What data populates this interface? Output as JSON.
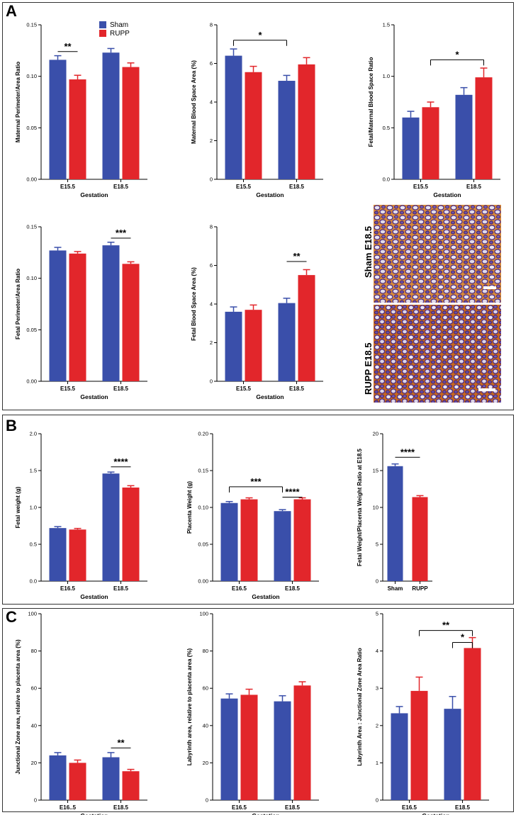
{
  "panels": {
    "A": "A",
    "B": "B",
    "C": "C"
  },
  "legend": {
    "sham": "Sham",
    "rupp": "RUPP",
    "sham_color": "#3a4faa",
    "rupp_color": "#e2262b"
  },
  "colors": {
    "sham": "#3a4faa",
    "rupp": "#e2262b"
  },
  "images": {
    "sham_label": "Sham E18.5",
    "rupp_label": "RUPP E18.5"
  },
  "chart_data": [
    {
      "id": "a1",
      "type": "bar",
      "ylabel": "Maternal Perimeter/Area Ratio",
      "xlabel": "Gestation",
      "categories": [
        "E15.5",
        "E18.5"
      ],
      "ylim": [
        0,
        0.15
      ],
      "yticks": [
        "0.00",
        "0.05",
        "0.10",
        "0.15"
      ],
      "series": [
        {
          "name": "Sham",
          "values": [
            0.116,
            0.123
          ],
          "errors": [
            0.004,
            0.004
          ]
        },
        {
          "name": "RUPP",
          "values": [
            0.097,
            0.109
          ],
          "errors": [
            0.004,
            0.004
          ]
        }
      ],
      "annotations": [
        {
          "text": "**",
          "from": [
            0,
            0
          ],
          "to": [
            0,
            1
          ],
          "y": 0.124,
          "bracket": false
        }
      ]
    },
    {
      "id": "a2",
      "type": "bar",
      "ylabel": "Maternal Blood Space Area (%)",
      "xlabel": "Gestation",
      "categories": [
        "E15.5",
        "E18.5"
      ],
      "ylim": [
        0,
        8
      ],
      "yticks": [
        "0",
        "2",
        "4",
        "6",
        "8"
      ],
      "series": [
        {
          "name": "Sham",
          "values": [
            6.4,
            5.1
          ],
          "errors": [
            0.35,
            0.28
          ]
        },
        {
          "name": "RUPP",
          "values": [
            5.55,
            5.95
          ],
          "errors": [
            0.3,
            0.35
          ]
        }
      ],
      "annotations": [
        {
          "text": "*",
          "from": [
            0,
            0
          ],
          "to": [
            1,
            0
          ],
          "y": 7.2,
          "bracket": true
        }
      ]
    },
    {
      "id": "a3",
      "type": "bar",
      "ylabel": "Fetal/Maternal Blood Space Ratio",
      "xlabel": "Gestation",
      "categories": [
        "E15.5",
        "E18.5"
      ],
      "ylim": [
        0,
        1.5
      ],
      "yticks": [
        "0.0",
        "0.5",
        "1.0",
        "1.5"
      ],
      "series": [
        {
          "name": "Sham",
          "values": [
            0.6,
            0.82
          ],
          "errors": [
            0.06,
            0.07
          ]
        },
        {
          "name": "RUPP",
          "values": [
            0.7,
            0.99
          ],
          "errors": [
            0.05,
            0.09
          ]
        }
      ],
      "annotations": [
        {
          "text": "*",
          "from": [
            0,
            1
          ],
          "to": [
            1,
            1
          ],
          "y": 1.16,
          "bracket": true
        }
      ]
    },
    {
      "id": "a4",
      "type": "bar",
      "ylabel": "Fetal Perimeter/Area Ratio",
      "xlabel": "Gestation",
      "categories": [
        "E15.5",
        "E18.5"
      ],
      "ylim": [
        0,
        0.15
      ],
      "yticks": [
        "0.00",
        "0.05",
        "0.10",
        "0.15"
      ],
      "series": [
        {
          "name": "Sham",
          "values": [
            0.127,
            0.132
          ],
          "errors": [
            0.003,
            0.003
          ]
        },
        {
          "name": "RUPP",
          "values": [
            0.124,
            0.114
          ],
          "errors": [
            0.002,
            0.002
          ]
        }
      ],
      "annotations": [
        {
          "text": "***",
          "from": [
            1,
            0
          ],
          "to": [
            1,
            1
          ],
          "y": 0.139,
          "bracket": false
        }
      ]
    },
    {
      "id": "a5",
      "type": "bar",
      "ylabel": "Fetal Blood Space Area (%)",
      "xlabel": "Gestation",
      "categories": [
        "E15.5",
        "E18.5"
      ],
      "ylim": [
        0,
        8
      ],
      "yticks": [
        "0",
        "2",
        "4",
        "6",
        "8"
      ],
      "series": [
        {
          "name": "Sham",
          "values": [
            3.6,
            4.05
          ],
          "errors": [
            0.25,
            0.25
          ]
        },
        {
          "name": "RUPP",
          "values": [
            3.7,
            5.5
          ],
          "errors": [
            0.25,
            0.28
          ]
        }
      ],
      "annotations": [
        {
          "text": "**",
          "from": [
            1,
            0
          ],
          "to": [
            1,
            1
          ],
          "y": 6.2,
          "bracket": false
        }
      ]
    },
    {
      "id": "b1",
      "type": "bar",
      "ylabel": "Fetal weight (g)",
      "xlabel": "Gestation",
      "categories": [
        "E16.5",
        "E18.5"
      ],
      "ylim": [
        0,
        2.0
      ],
      "yticks": [
        "0.0",
        "0.5",
        "1.0",
        "1.5",
        "2.0"
      ],
      "series": [
        {
          "name": "Sham",
          "values": [
            0.72,
            1.46
          ],
          "errors": [
            0.02,
            0.02
          ]
        },
        {
          "name": "RUPP",
          "values": [
            0.7,
            1.27
          ],
          "errors": [
            0.015,
            0.025
          ]
        }
      ],
      "annotations": [
        {
          "text": "****",
          "from": [
            1,
            0
          ],
          "to": [
            1,
            1
          ],
          "y": 1.55,
          "bracket": false
        }
      ]
    },
    {
      "id": "b2",
      "type": "bar",
      "ylabel": "Placenta Weight (g)",
      "xlabel": "Gestation",
      "categories": [
        "E16.5",
        "E18.5"
      ],
      "ylim": [
        0,
        0.2
      ],
      "yticks": [
        "0.00",
        "0.05",
        "0.10",
        "0.15",
        "0.20"
      ],
      "series": [
        {
          "name": "Sham",
          "values": [
            0.106,
            0.095
          ],
          "errors": [
            0.002,
            0.002
          ]
        },
        {
          "name": "RUPP",
          "values": [
            0.111,
            0.111
          ],
          "errors": [
            0.002,
            0.002
          ]
        }
      ],
      "annotations": [
        {
          "text": "***",
          "from": [
            0,
            0
          ],
          "to": [
            1,
            0
          ],
          "y": 0.128,
          "bracket": true
        },
        {
          "text": "****",
          "from": [
            1,
            0
          ],
          "to": [
            1,
            1
          ],
          "y": 0.114,
          "bracket": false
        }
      ]
    },
    {
      "id": "b3",
      "type": "bar",
      "ylabel": "Fetal Weight/Placenta Weight Ratio at E18.5",
      "xlabel": "",
      "categories": [
        "Sham",
        "RUPP"
      ],
      "ylim": [
        0,
        20
      ],
      "yticks": [
        "0",
        "5",
        "10",
        "15",
        "20"
      ],
      "series": [
        {
          "name": "Values",
          "values": [
            15.6,
            11.4
          ],
          "errors": [
            0.3,
            0.2
          ]
        }
      ],
      "annotations": [
        {
          "text": "****",
          "from": [
            0,
            0
          ],
          "to": [
            1,
            0
          ],
          "y": 16.8,
          "bracket": false
        }
      ]
    },
    {
      "id": "c1",
      "type": "bar",
      "ylabel": "Junctional Zone area, relative to placenta area (%)",
      "xlabel": "Gestation",
      "categories": [
        "E16..5",
        "E18.5"
      ],
      "ylim": [
        0,
        100
      ],
      "yticks": [
        "0",
        "20",
        "40",
        "60",
        "80",
        "100"
      ],
      "series": [
        {
          "name": "Sham",
          "values": [
            24,
            23
          ],
          "errors": [
            1.5,
            2.5
          ]
        },
        {
          "name": "RUPP",
          "values": [
            20,
            15.5
          ],
          "errors": [
            1.5,
            1
          ]
        }
      ],
      "annotations": [
        {
          "text": "**",
          "from": [
            1,
            0
          ],
          "to": [
            1,
            1
          ],
          "y": 28,
          "bracket": false
        }
      ]
    },
    {
      "id": "c2",
      "type": "bar",
      "ylabel": "Labyrinth area, relative to placenta area (%)",
      "xlabel": "Gestation",
      "categories": [
        "E16.5",
        "E18.5"
      ],
      "ylim": [
        0,
        100
      ],
      "yticks": [
        "0",
        "20",
        "40",
        "60",
        "80",
        "100"
      ],
      "series": [
        {
          "name": "Sham",
          "values": [
            54.5,
            53
          ],
          "errors": [
            2.5,
            3
          ]
        },
        {
          "name": "RUPP",
          "values": [
            56.5,
            61.5
          ],
          "errors": [
            3,
            2
          ]
        }
      ],
      "annotations": []
    },
    {
      "id": "c3",
      "type": "bar",
      "ylabel": "Labyrinth Area : Junctional Zone Area Ratio",
      "xlabel": "Gestation",
      "categories": [
        "E16.5",
        "E18.5"
      ],
      "ylim": [
        0,
        5
      ],
      "yticks": [
        "0",
        "1",
        "2",
        "3",
        "4",
        "5"
      ],
      "series": [
        {
          "name": "Sham",
          "values": [
            2.33,
            2.45
          ],
          "errors": [
            0.18,
            0.33
          ]
        },
        {
          "name": "RUPP",
          "values": [
            2.93,
            4.08
          ],
          "errors": [
            0.37,
            0.28
          ]
        }
      ],
      "annotations": [
        {
          "text": "**",
          "from": [
            0,
            1
          ],
          "to": [
            1,
            1
          ],
          "y": 4.55,
          "bracket": true
        },
        {
          "text": "*",
          "from": [
            1,
            0
          ],
          "to": [
            1,
            1
          ],
          "y": 4.23,
          "bracket": true
        }
      ]
    }
  ]
}
